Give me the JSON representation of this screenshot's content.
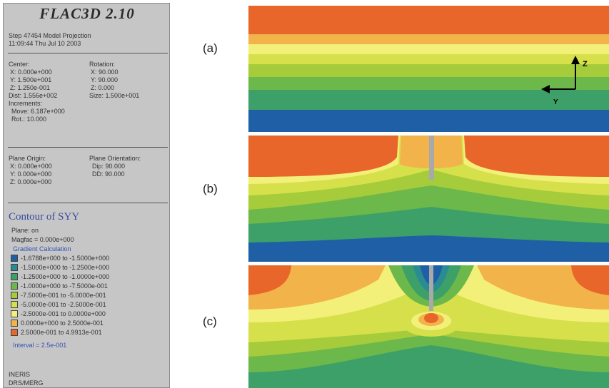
{
  "panel": {
    "title": "FLAC3D 2.10",
    "step": "Step 47454  Model Projection",
    "datetime": "11:09:44 Thu Jul 10 2003",
    "center_label": "Center:",
    "center": [
      "X: 0.000e+000",
      "Y: 1.500e+001",
      "Z: 1.250e-001"
    ],
    "dist": "Dist: 1.556e+002",
    "rotation_label": "Rotation:",
    "rotation": [
      "X:  90.000",
      "Y:  90.000",
      "Z:   0.000"
    ],
    "size": "Size: 1.500e+001",
    "increments_label": "Increments:",
    "move": "Move: 6.187e+000",
    "rot": "Rot.:  10.000",
    "plane_origin_label": "Plane Origin:",
    "plane_origin": [
      "X: 0.000e+000",
      "Y: 0.000e+000",
      "Z: 0.000e+000"
    ],
    "plane_orientation_label": "Plane Orientation:",
    "plane_orientation": [
      "Dip:  90.000",
      "DD:   90.000"
    ],
    "contour_title": "Contour of SYY",
    "plane": "Plane: on",
    "magfac": "Magfac =  0.000e+000",
    "gradient": "Gradient Calculation",
    "legend": [
      {
        "label": "-1.6788e+000 to -1.5000e+000",
        "color": "#1f5fa6"
      },
      {
        "label": "-1.5000e+000 to -1.2500e+000",
        "color": "#2a8c92"
      },
      {
        "label": "-1.2500e+000 to -1.0000e+000",
        "color": "#3ca068"
      },
      {
        "label": "-1.0000e+000 to -7.5000e-001",
        "color": "#6cb84a"
      },
      {
        "label": "-7.5000e-001 to -5.0000e-001",
        "color": "#a6cc3c"
      },
      {
        "label": "-5.0000e-001 to -2.5000e-001",
        "color": "#d6e04a"
      },
      {
        "label": "-2.5000e-001 to  0.0000e+000",
        "color": "#f3f07a"
      },
      {
        "label": " 0.0000e+000 to  2.5000e-001",
        "color": "#f2b34a"
      },
      {
        "label": " 2.5000e-001 to  4.9913e-001",
        "color": "#e8662a"
      }
    ],
    "interval": "Interval =  2.5e-001",
    "footer": [
      "INERIS",
      "DRS/MERG"
    ]
  },
  "figure": {
    "labels": [
      "(a)",
      "(b)",
      "(c)"
    ],
    "axis_z": "Z",
    "axis_y": "Y"
  }
}
